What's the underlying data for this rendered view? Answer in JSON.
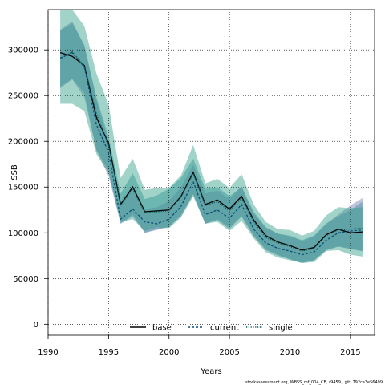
{
  "chart_data": {
    "type": "line",
    "xlabel": "Years",
    "ylabel": "SSB",
    "xlim": [
      1990,
      2017
    ],
    "ylim": [
      -12000,
      344000
    ],
    "x_ticks": [
      1990,
      1995,
      2000,
      2005,
      2010,
      2015
    ],
    "y_ticks": [
      0,
      50000,
      100000,
      150000,
      200000,
      250000,
      300000
    ],
    "grid": true,
    "legend_position": "bottom-center",
    "footnote": "stockassessment.org, WBSS_mf_004_CB, r9459 , git: 792ca3e56499",
    "x": [
      1991,
      1992,
      1993,
      1994,
      1995,
      1996,
      1997,
      1998,
      1999,
      2000,
      2001,
      2002,
      2003,
      2004,
      2005,
      2006,
      2007,
      2008,
      2009,
      2010,
      2011,
      2012,
      2013,
      2014,
      2015,
      2016
    ],
    "series": [
      {
        "name": "base",
        "line_color": "#000000",
        "line_style": "solid",
        "band_color": "#2e8fa0",
        "values": [
          297000,
          293000,
          283000,
          226000,
          198000,
          131000,
          150000,
          123000,
          124000,
          125000,
          140000,
          166000,
          131000,
          136000,
          126000,
          140000,
          114000,
          97000,
          90000,
          86000,
          81000,
          84000,
          98000,
          104000,
          100000,
          101000
        ],
        "lower": [
          260000,
          268000,
          253000,
          190000,
          168000,
          110000,
          120000,
          100000,
          104000,
          106000,
          120000,
          142000,
          110000,
          115000,
          106000,
          118000,
          97000,
          82000,
          76000,
          71000,
          67000,
          70000,
          81000,
          85000,
          82000,
          80000
        ],
        "upper": [
          321000,
          329000,
          305000,
          248000,
          205000,
          143000,
          165000,
          137000,
          141000,
          148000,
          160000,
          181000,
          148000,
          150000,
          140000,
          150000,
          123000,
          106000,
          99000,
          97000,
          92000,
          97000,
          110000,
          118000,
          125000,
          134000
        ]
      },
      {
        "name": "current",
        "line_color": "#0a4f78",
        "line_style": "dashed",
        "band_color": "#6e7fb0",
        "values": [
          291000,
          297000,
          281000,
          218000,
          188000,
          115000,
          126000,
          112000,
          110000,
          115000,
          129000,
          156000,
          120000,
          125000,
          116000,
          131000,
          104000,
          89000,
          83000,
          80000,
          76000,
          79000,
          92000,
          100000,
          102000,
          103000
        ],
        "lower": [
          258000,
          268000,
          248000,
          190000,
          162000,
          110000,
          118000,
          100000,
          103000,
          107000,
          118000,
          142000,
          110000,
          114000,
          104000,
          118000,
          96000,
          81000,
          75000,
          71000,
          67000,
          70000,
          81000,
          85000,
          83000,
          80000
        ],
        "upper": [
          322000,
          331000,
          305000,
          245000,
          200000,
          135000,
          152000,
          126000,
          128000,
          135000,
          150000,
          174000,
          143000,
          146000,
          137000,
          151000,
          121000,
          106000,
          99000,
          96000,
          91000,
          96000,
          110000,
          120000,
          130000,
          138000
        ]
      },
      {
        "name": "single",
        "line_color": "#0d5d59",
        "line_style": "dotted",
        "band_color": "#2f9e87",
        "values": [
          290000,
          298000,
          282000,
          230000,
          196000,
          130000,
          148000,
          122000,
          123000,
          124000,
          139000,
          165000,
          130000,
          134000,
          124000,
          138000,
          112000,
          95000,
          89000,
          85000,
          80000,
          83000,
          97000,
          103000,
          104000,
          105000
        ],
        "lower": [
          241000,
          241000,
          233000,
          186000,
          165000,
          112000,
          115000,
          102000,
          106000,
          105000,
          117000,
          140000,
          110000,
          112000,
          102000,
          113000,
          94000,
          79000,
          73000,
          70000,
          67000,
          68000,
          80000,
          81000,
          76000,
          74000
        ],
        "upper": [
          344000,
          344000,
          326000,
          274000,
          240000,
          160000,
          181000,
          147000,
          149000,
          149000,
          163000,
          196000,
          154000,
          159000,
          149000,
          164000,
          131000,
          112000,
          104000,
          103000,
          97000,
          102000,
          119000,
          128000,
          127000,
          128000
        ]
      }
    ]
  }
}
